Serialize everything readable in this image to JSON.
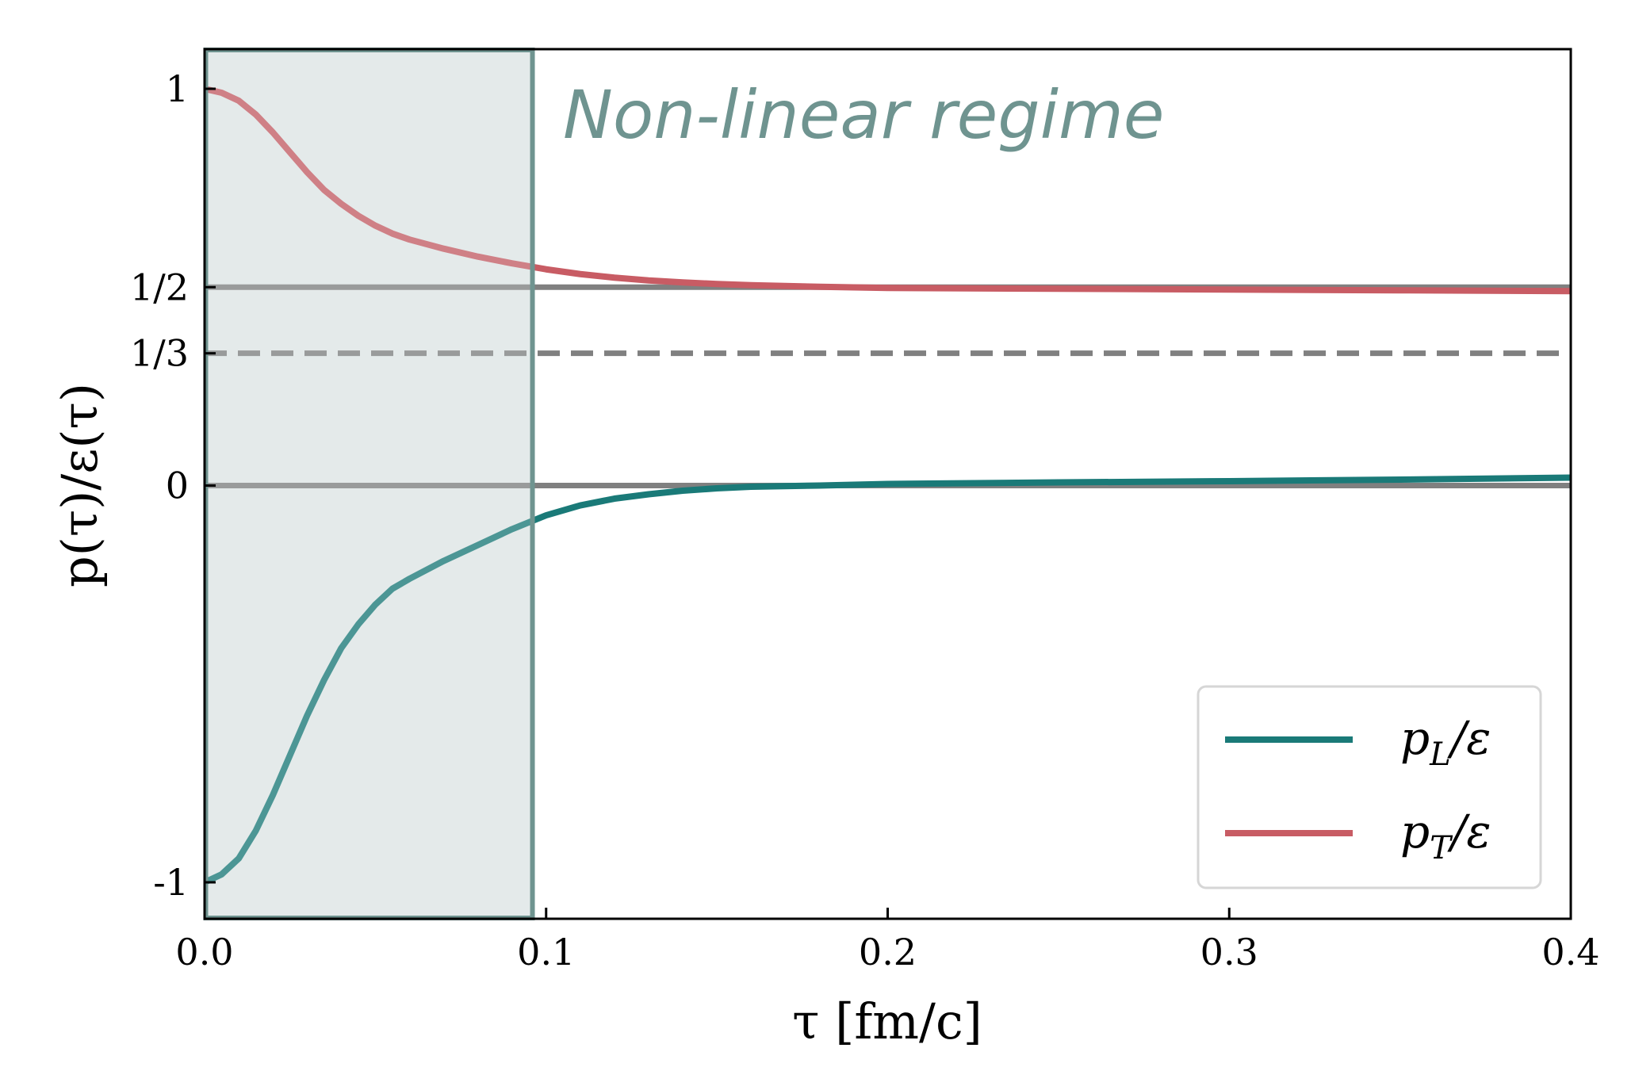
{
  "chart_data": {
    "type": "line",
    "xlabel": "τ [fm/c]",
    "ylabel": "p(τ)/ε(τ)",
    "xlim": [
      0.0,
      0.4
    ],
    "ylim": [
      -1.1,
      1.1
    ],
    "x_ticks": [
      {
        "value": 0.0,
        "label": "0.0"
      },
      {
        "value": 0.1,
        "label": "0.1"
      },
      {
        "value": 0.2,
        "label": "0.2"
      },
      {
        "value": 0.3,
        "label": "0.3"
      },
      {
        "value": 0.4,
        "label": "0.4"
      }
    ],
    "y_ticks": [
      {
        "value": -1.0,
        "label": "-1"
      },
      {
        "value": 0.0,
        "label": "0"
      },
      {
        "value": 0.3333,
        "label": "1/3"
      },
      {
        "value": 0.5,
        "label": "1/2"
      },
      {
        "value": 1.0,
        "label": "1"
      }
    ],
    "reference_lines": [
      {
        "y": 0.5,
        "style": "solid",
        "color": "#808080"
      },
      {
        "y": 0.3333,
        "style": "dashed",
        "color": "#808080"
      },
      {
        "y": 0.0,
        "style": "solid",
        "color": "#808080"
      }
    ],
    "shaded_region": {
      "x_range": [
        0.0,
        0.096
      ],
      "label": "Non-linear regime",
      "fill_color": "#e4eaea",
      "edge_color": "#6f9490"
    },
    "legend": {
      "placement": "lower-right"
    },
    "series": [
      {
        "name": "p_L/ε",
        "legend_main": "p",
        "legend_sub": "L",
        "legend_tail": "/ε",
        "color": "#1a7a78",
        "x": [
          0.0,
          0.005,
          0.01,
          0.015,
          0.02,
          0.025,
          0.03,
          0.035,
          0.04,
          0.045,
          0.05,
          0.055,
          0.06,
          0.07,
          0.08,
          0.09,
          0.1,
          0.11,
          0.12,
          0.13,
          0.14,
          0.15,
          0.16,
          0.18,
          0.2,
          0.25,
          0.3,
          0.35,
          0.4
        ],
        "y": [
          -1.0,
          -0.98,
          -0.94,
          -0.87,
          -0.78,
          -0.68,
          -0.58,
          -0.49,
          -0.41,
          -0.35,
          -0.3,
          -0.26,
          -0.235,
          -0.19,
          -0.15,
          -0.11,
          -0.075,
          -0.05,
          -0.033,
          -0.022,
          -0.013,
          -0.007,
          -0.003,
          0.0,
          0.004,
          0.008,
          0.011,
          0.015,
          0.02
        ]
      },
      {
        "name": "p_T/ε",
        "legend_main": "p",
        "legend_sub": "T",
        "legend_tail": "/ε",
        "color": "#c85c64",
        "x": [
          0.0,
          0.005,
          0.01,
          0.015,
          0.02,
          0.025,
          0.03,
          0.035,
          0.04,
          0.045,
          0.05,
          0.055,
          0.06,
          0.07,
          0.08,
          0.09,
          0.1,
          0.11,
          0.12,
          0.13,
          0.14,
          0.15,
          0.16,
          0.18,
          0.2,
          0.25,
          0.3,
          0.35,
          0.4
        ],
        "y": [
          1.0,
          0.99,
          0.97,
          0.935,
          0.89,
          0.84,
          0.79,
          0.745,
          0.71,
          0.68,
          0.655,
          0.635,
          0.62,
          0.597,
          0.577,
          0.56,
          0.545,
          0.533,
          0.524,
          0.517,
          0.512,
          0.508,
          0.505,
          0.501,
          0.498,
          0.496,
          0.494,
          0.492,
          0.49
        ]
      }
    ]
  }
}
